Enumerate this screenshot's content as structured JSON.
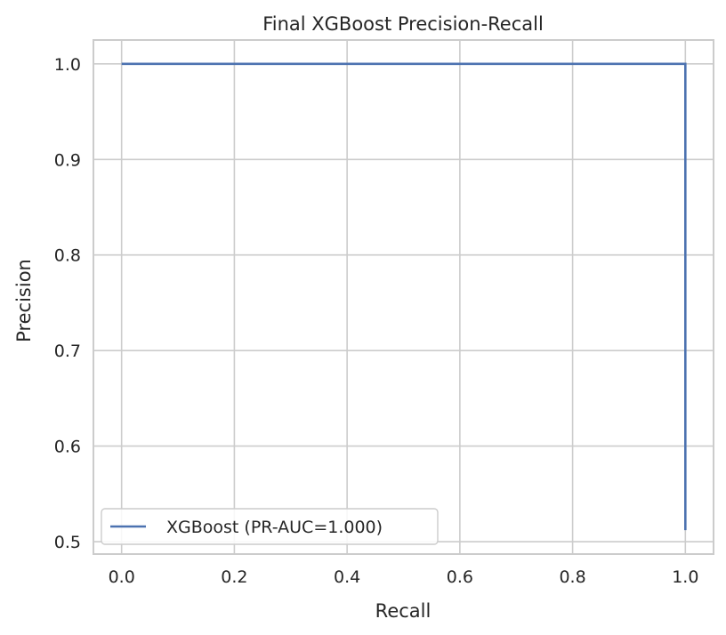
{
  "chart_data": {
    "type": "line",
    "title": "Final XGBoost Precision-Recall",
    "xlabel": "Recall",
    "ylabel": "Precision",
    "xlim": [
      -0.05,
      1.05
    ],
    "ylim": [
      0.487,
      1.025
    ],
    "xticks": [
      0.0,
      0.2,
      0.4,
      0.6,
      0.8,
      1.0
    ],
    "xtick_labels": [
      "0.0",
      "0.2",
      "0.4",
      "0.6",
      "0.8",
      "1.0"
    ],
    "yticks": [
      0.5,
      0.6,
      0.7,
      0.8,
      0.9,
      1.0
    ],
    "ytick_labels": [
      "0.5",
      "0.6",
      "0.7",
      "0.8",
      "0.9",
      "1.0"
    ],
    "grid": true,
    "legend_position": "bottom-left",
    "series": [
      {
        "name": "XGBoost (PR-AUC=1.000)",
        "color": "#4c72b0",
        "x": [
          0.0,
          1.0,
          1.0
        ],
        "y": [
          1.0,
          1.0,
          0.512
        ]
      }
    ]
  }
}
